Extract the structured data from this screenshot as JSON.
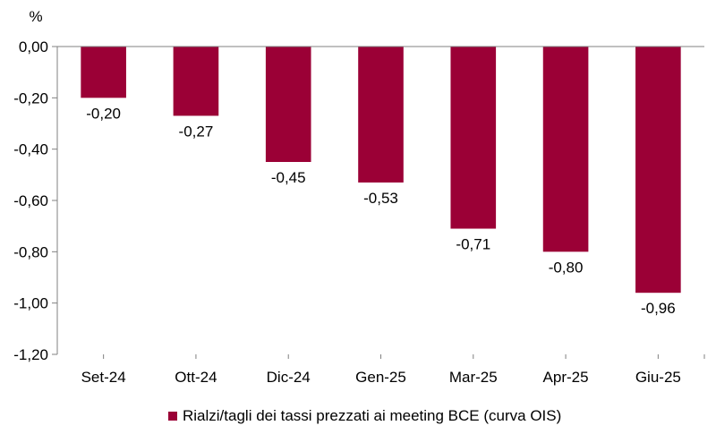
{
  "chart_data": {
    "type": "bar",
    "ylabel": "%",
    "categories": [
      "Set-24",
      "Ott-24",
      "Dic-24",
      "Gen-25",
      "Mar-25",
      "Apr-25",
      "Giu-25"
    ],
    "series": [
      {
        "name": "Rialzi/tagli dei tassi prezzati ai meeting BCE (curva OIS)",
        "values": [
          -0.2,
          -0.27,
          -0.45,
          -0.53,
          -0.71,
          -0.8,
          -0.96
        ],
        "labels": [
          "-0,20",
          "-0,27",
          "-0,45",
          "-0,53",
          "-0,71",
          "-0,80",
          "-0,96"
        ],
        "color": "#9b0036"
      }
    ],
    "ylim": [
      -1.2,
      0.0
    ],
    "yticks": [
      0.0,
      -0.2,
      -0.4,
      -0.6,
      -0.8,
      -1.0,
      -1.2
    ],
    "ytick_labels": [
      "0,00",
      "-0,20",
      "-0,40",
      "-0,60",
      "-0,80",
      "-1,00",
      "-1,20"
    ],
    "grid": false,
    "legend_position": "bottom"
  }
}
